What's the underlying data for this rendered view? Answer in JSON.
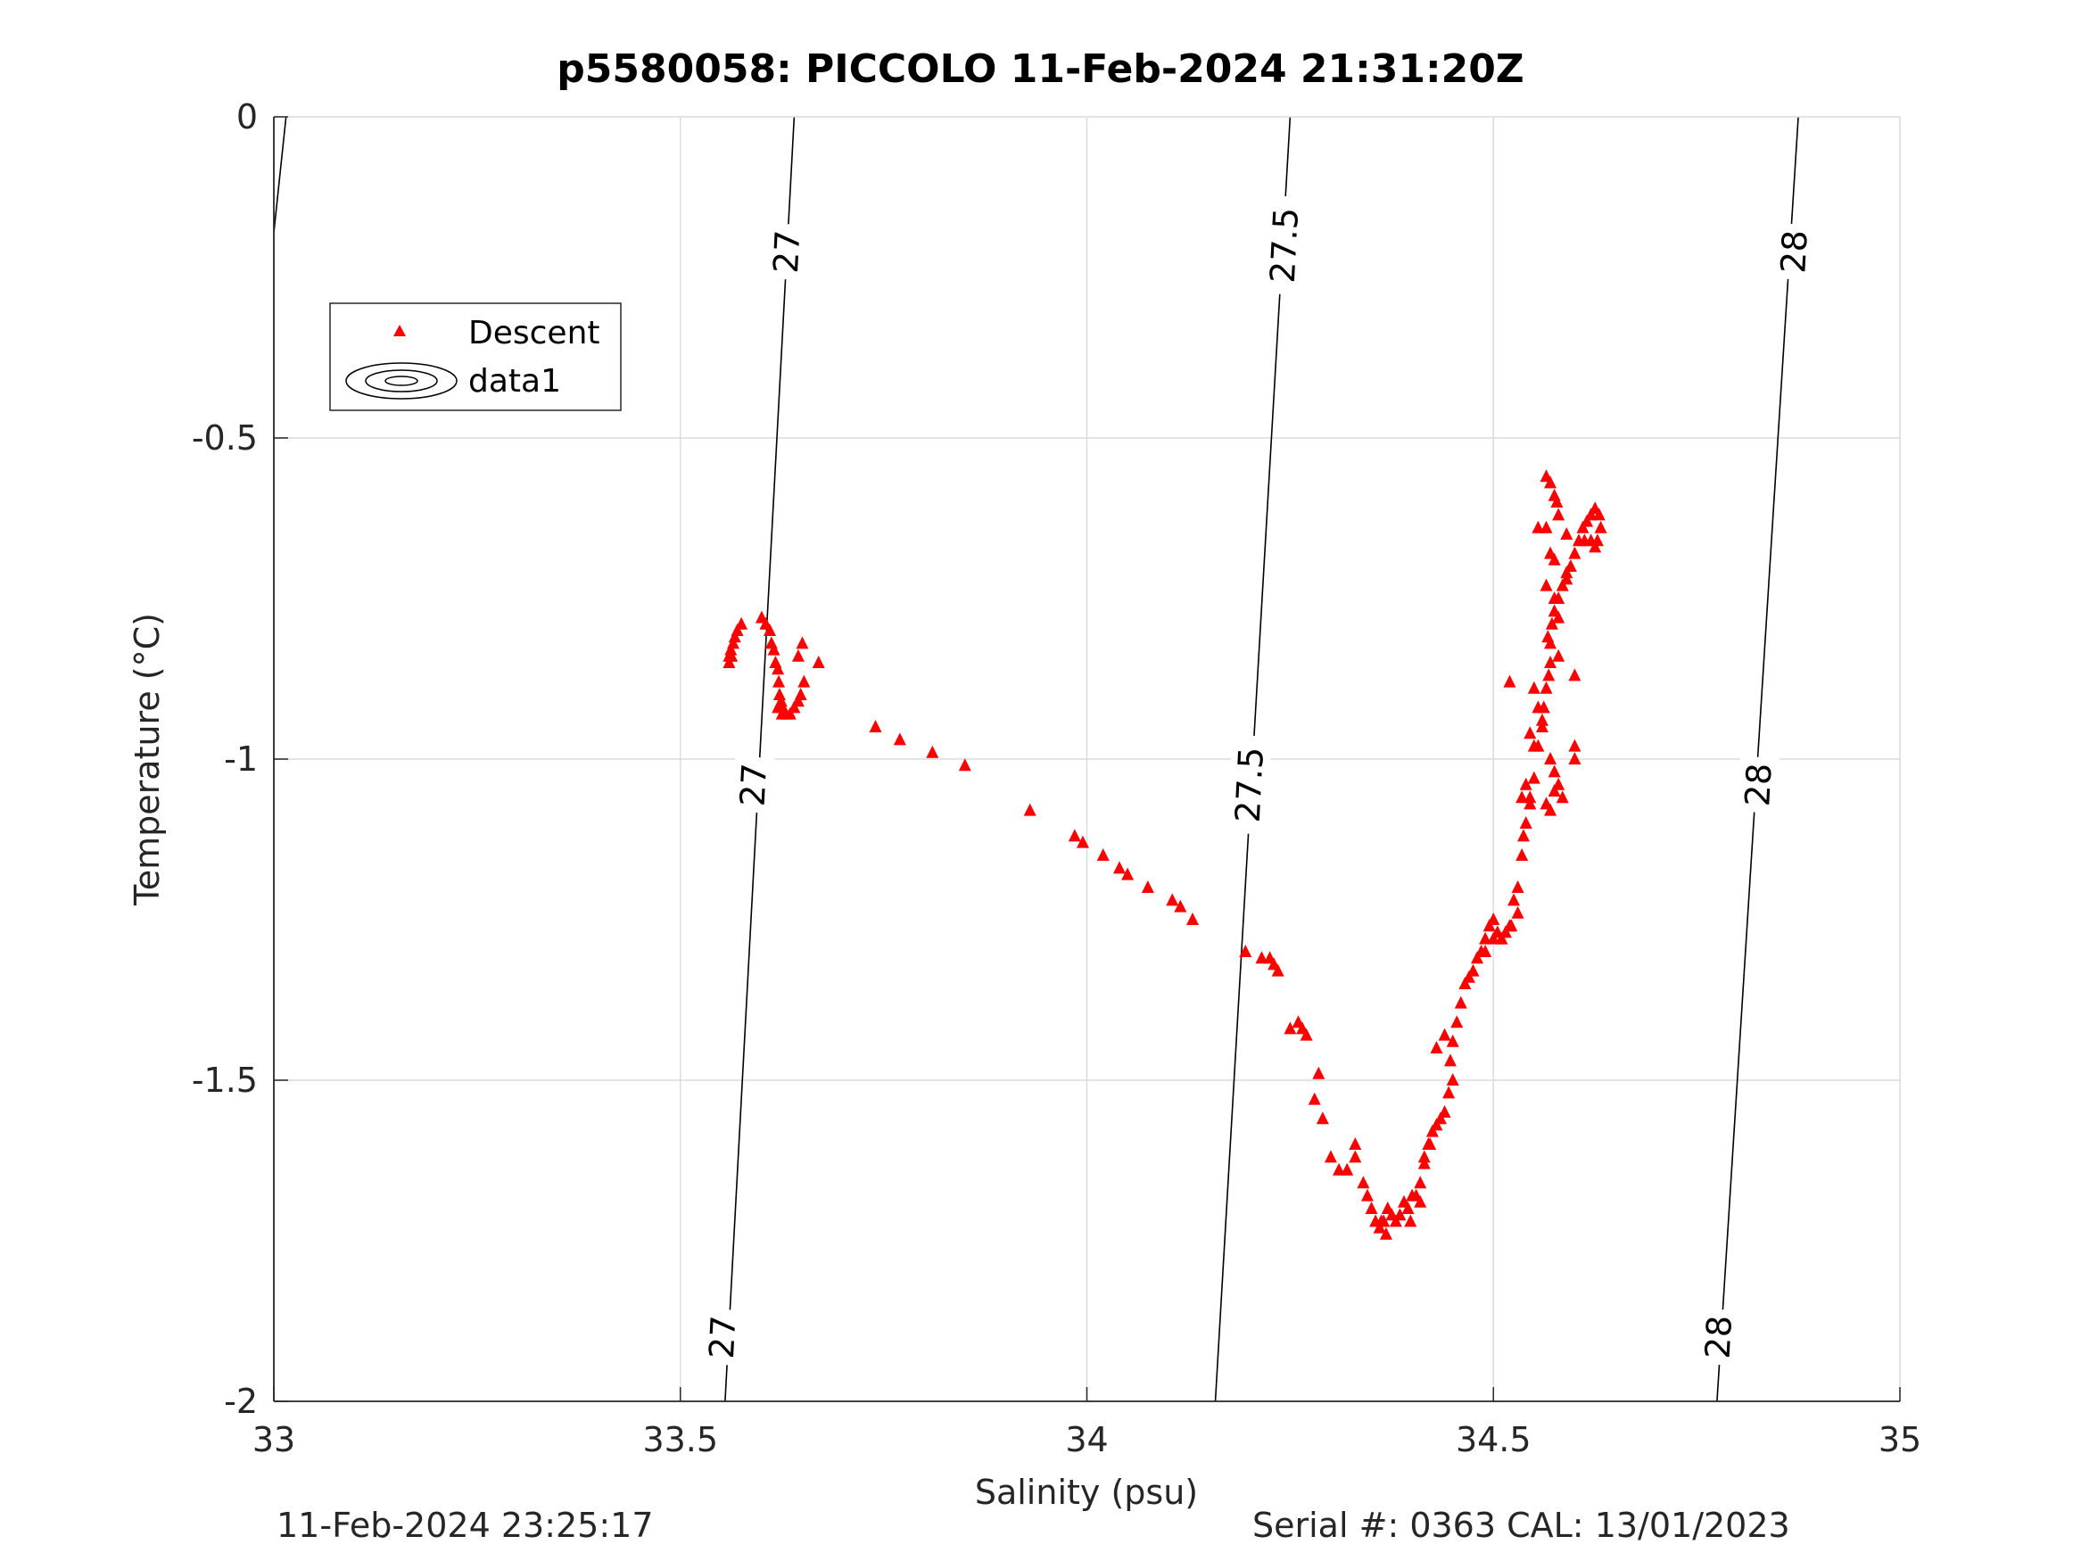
{
  "footer": {
    "timestamp": "11-Feb-2024 23:25:17",
    "serial_cal": "Serial #: 0363  CAL: 13/01/2023"
  },
  "colors": {
    "descent": "#ff0000",
    "contour": "#000000",
    "grid": "#dcdcdc",
    "axis": "#262626"
  },
  "chart_data": {
    "type": "scatter",
    "title": "p5580058: PICCOLO 11-Feb-2024 21:31:20Z",
    "xlabel": "Salinity (psu)",
    "ylabel": "Temperature (°C)",
    "xlim": [
      33,
      35
    ],
    "ylim": [
      -2,
      0
    ],
    "xticks": [
      33,
      33.5,
      34,
      34.5,
      35
    ],
    "xtick_labels": [
      "33",
      "33.5",
      "34",
      "34.5",
      "35"
    ],
    "yticks": [
      0,
      -0.5,
      -1,
      -1.5,
      -2
    ],
    "ytick_labels": [
      "0",
      "-0.5",
      "-1",
      "-1.5",
      "-2"
    ],
    "grid": true,
    "legend": {
      "location": "top-left",
      "entries": [
        "Descent",
        "data1"
      ]
    },
    "series": [
      {
        "name": "Descent",
        "marker": "triangle",
        "color": "#ff0000",
        "points": [
          [
            33.56,
            -0.85
          ],
          [
            33.562,
            -0.83
          ],
          [
            33.565,
            -0.82
          ],
          [
            33.567,
            -0.81
          ],
          [
            33.57,
            -0.8
          ],
          [
            33.575,
            -0.79
          ],
          [
            33.56,
            -0.84
          ],
          [
            33.563,
            -0.84
          ],
          [
            33.6,
            -0.78
          ],
          [
            33.605,
            -0.79
          ],
          [
            33.61,
            -0.8
          ],
          [
            33.612,
            -0.82
          ],
          [
            33.615,
            -0.83
          ],
          [
            33.617,
            -0.85
          ],
          [
            33.62,
            -0.86
          ],
          [
            33.621,
            -0.88
          ],
          [
            33.622,
            -0.9
          ],
          [
            33.624,
            -0.91
          ],
          [
            33.626,
            -0.92
          ],
          [
            33.63,
            -0.93
          ],
          [
            33.635,
            -0.93
          ],
          [
            33.64,
            -0.92
          ],
          [
            33.645,
            -0.91
          ],
          [
            33.648,
            -0.9
          ],
          [
            33.652,
            -0.88
          ],
          [
            33.65,
            -0.82
          ],
          [
            33.645,
            -0.84
          ],
          [
            33.67,
            -0.85
          ],
          [
            33.62,
            -0.92
          ],
          [
            33.625,
            -0.93
          ],
          [
            33.74,
            -0.95
          ],
          [
            33.77,
            -0.97
          ],
          [
            33.81,
            -0.99
          ],
          [
            33.85,
            -1.01
          ],
          [
            33.93,
            -1.08
          ],
          [
            33.985,
            -1.12
          ],
          [
            33.995,
            -1.13
          ],
          [
            34.02,
            -1.15
          ],
          [
            34.04,
            -1.17
          ],
          [
            34.05,
            -1.18
          ],
          [
            34.075,
            -1.2
          ],
          [
            34.105,
            -1.22
          ],
          [
            34.115,
            -1.23
          ],
          [
            34.13,
            -1.25
          ],
          [
            34.195,
            -1.3
          ],
          [
            34.215,
            -1.31
          ],
          [
            34.225,
            -1.31
          ],
          [
            34.23,
            -1.32
          ],
          [
            34.235,
            -1.33
          ],
          [
            34.25,
            -1.42
          ],
          [
            34.26,
            -1.41
          ],
          [
            34.265,
            -1.42
          ],
          [
            34.27,
            -1.43
          ],
          [
            34.285,
            -1.49
          ],
          [
            34.28,
            -1.53
          ],
          [
            34.29,
            -1.56
          ],
          [
            34.3,
            -1.62
          ],
          [
            34.31,
            -1.64
          ],
          [
            34.32,
            -1.64
          ],
          [
            34.33,
            -1.62
          ],
          [
            34.33,
            -1.6
          ],
          [
            34.34,
            -1.66
          ],
          [
            34.345,
            -1.68
          ],
          [
            34.35,
            -1.7
          ],
          [
            34.355,
            -1.72
          ],
          [
            34.36,
            -1.73
          ],
          [
            34.365,
            -1.72
          ],
          [
            34.37,
            -1.7
          ],
          [
            34.375,
            -1.71
          ],
          [
            34.38,
            -1.72
          ],
          [
            34.385,
            -1.71
          ],
          [
            34.39,
            -1.69
          ],
          [
            34.395,
            -1.7
          ],
          [
            34.4,
            -1.68
          ],
          [
            34.405,
            -1.68
          ],
          [
            34.41,
            -1.66
          ],
          [
            34.415,
            -1.63
          ],
          [
            34.42,
            -1.6
          ],
          [
            34.425,
            -1.58
          ],
          [
            34.43,
            -1.57
          ],
          [
            34.435,
            -1.56
          ],
          [
            34.44,
            -1.55
          ],
          [
            34.445,
            -1.52
          ],
          [
            34.45,
            -1.5
          ],
          [
            34.447,
            -1.47
          ],
          [
            34.45,
            -1.44
          ],
          [
            34.455,
            -1.41
          ],
          [
            34.46,
            -1.38
          ],
          [
            34.465,
            -1.35
          ],
          [
            34.47,
            -1.34
          ],
          [
            34.475,
            -1.33
          ],
          [
            34.48,
            -1.31
          ],
          [
            34.485,
            -1.3
          ],
          [
            34.49,
            -1.28
          ],
          [
            34.495,
            -1.26
          ],
          [
            34.5,
            -1.25
          ],
          [
            34.505,
            -1.27
          ],
          [
            34.51,
            -1.28
          ],
          [
            34.515,
            -1.27
          ],
          [
            34.52,
            -1.26
          ],
          [
            34.525,
            -1.22
          ],
          [
            34.53,
            -1.2
          ],
          [
            34.535,
            -1.15
          ],
          [
            34.537,
            -1.12
          ],
          [
            34.54,
            -1.1
          ],
          [
            34.545,
            -1.06
          ],
          [
            34.55,
            -1.03
          ],
          [
            34.555,
            -0.98
          ],
          [
            34.56,
            -0.95
          ],
          [
            34.562,
            -0.92
          ],
          [
            34.565,
            -0.89
          ],
          [
            34.568,
            -0.87
          ],
          [
            34.57,
            -0.85
          ],
          [
            34.567,
            -0.81
          ],
          [
            34.572,
            -0.79
          ],
          [
            34.575,
            -0.77
          ],
          [
            34.58,
            -0.75
          ],
          [
            34.585,
            -0.73
          ],
          [
            34.59,
            -0.71
          ],
          [
            34.595,
            -0.7
          ],
          [
            34.6,
            -0.68
          ],
          [
            34.605,
            -0.66
          ],
          [
            34.61,
            -0.64
          ],
          [
            34.615,
            -0.63
          ],
          [
            34.62,
            -0.62
          ],
          [
            34.625,
            -0.61
          ],
          [
            34.63,
            -0.62
          ],
          [
            34.632,
            -0.64
          ],
          [
            34.628,
            -0.66
          ],
          [
            34.625,
            -0.67
          ],
          [
            34.565,
            -0.56
          ],
          [
            34.57,
            -0.57
          ],
          [
            34.575,
            -0.59
          ],
          [
            34.578,
            -0.6
          ],
          [
            34.58,
            -0.62
          ],
          [
            34.555,
            -0.64
          ],
          [
            34.565,
            -0.64
          ],
          [
            34.59,
            -0.65
          ],
          [
            34.57,
            -0.68
          ],
          [
            34.575,
            -0.69
          ],
          [
            34.565,
            -0.73
          ],
          [
            34.575,
            -0.75
          ],
          [
            34.58,
            -0.78
          ],
          [
            34.57,
            -0.82
          ],
          [
            34.58,
            -0.84
          ],
          [
            34.6,
            -0.87
          ],
          [
            34.55,
            -0.89
          ],
          [
            34.555,
            -0.92
          ],
          [
            34.56,
            -0.94
          ],
          [
            34.545,
            -0.96
          ],
          [
            34.55,
            -0.98
          ],
          [
            34.57,
            -1.0
          ],
          [
            34.575,
            -1.02
          ],
          [
            34.58,
            -1.04
          ],
          [
            34.585,
            -1.06
          ],
          [
            34.57,
            -1.08
          ],
          [
            34.565,
            -1.07
          ],
          [
            34.6,
            -0.98
          ],
          [
            34.6,
            -1.0
          ],
          [
            34.54,
            -1.04
          ],
          [
            34.535,
            -1.06
          ],
          [
            34.545,
            -1.07
          ],
          [
            34.52,
            -0.88
          ],
          [
            34.53,
            -1.24
          ],
          [
            34.522,
            -1.26
          ],
          [
            34.51,
            -1.28
          ],
          [
            34.5,
            -1.28
          ],
          [
            34.49,
            -1.3
          ],
          [
            34.43,
            -1.45
          ],
          [
            34.44,
            -1.43
          ],
          [
            34.422,
            -1.6
          ],
          [
            34.415,
            -1.62
          ],
          [
            34.368,
            -1.74
          ],
          [
            34.362,
            -1.72
          ],
          [
            34.398,
            -1.72
          ],
          [
            34.41,
            -1.69
          ],
          [
            34.575,
            -1.05
          ],
          [
            34.59,
            -0.72
          ],
          [
            34.612,
            -0.66
          ],
          [
            34.62,
            -0.66
          ]
        ]
      }
    ],
    "contours": [
      {
        "label": "27",
        "line": [
          [
            33.555,
            -2
          ],
          [
            33.64,
            0
          ]
        ]
      },
      {
        "label": "27.5",
        "line": [
          [
            34.158,
            -2
          ],
          [
            34.25,
            0
          ]
        ]
      },
      {
        "label": "28",
        "line": [
          [
            34.775,
            -2
          ],
          [
            34.875,
            0
          ]
        ]
      }
    ],
    "contour_labels": [
      {
        "text": "27",
        "at": [
          33.631,
          -0.21
        ]
      },
      {
        "text": "27",
        "at": [
          33.59,
          -1.04
        ]
      },
      {
        "text": "27",
        "at": [
          33.552,
          -1.9
        ]
      },
      {
        "text": "27.5",
        "at": [
          34.243,
          -0.2
        ]
      },
      {
        "text": "27.5",
        "at": [
          34.2,
          -1.04
        ]
      },
      {
        "text": "28",
        "at": [
          34.87,
          -0.21
        ]
      },
      {
        "text": "28",
        "at": [
          34.826,
          -1.04
        ]
      },
      {
        "text": "28",
        "at": [
          34.777,
          -1.9
        ]
      }
    ]
  }
}
